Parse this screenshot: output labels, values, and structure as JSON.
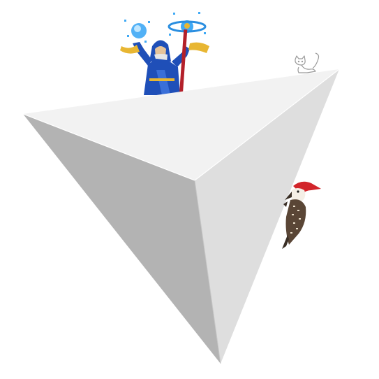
{
  "scene": {
    "background": "#ffffff",
    "solid": {
      "shape": "tetrahedron",
      "face_colors": {
        "top": "#f2f2f2",
        "left": "#b3b3b3",
        "right": "#dedede",
        "edge_highlight": "#ffffff"
      }
    },
    "figures": [
      {
        "name": "wizard",
        "icon": "wizard-icon",
        "colors": {
          "robe": "#1f4fb8",
          "trim": "#e8b632",
          "staff": "#b3202a",
          "magic": "#3fa9f5",
          "beard": "#e6e6e6"
        }
      },
      {
        "name": "cat",
        "icon": "cat-icon",
        "colors": {
          "line": "#9a9a9a"
        }
      },
      {
        "name": "woodpecker",
        "icon": "woodpecker-icon",
        "colors": {
          "crest": "#d2252b",
          "body": "#5a4636",
          "spots": "#e8dcc8",
          "face": "#f4efe6"
        }
      }
    ]
  }
}
